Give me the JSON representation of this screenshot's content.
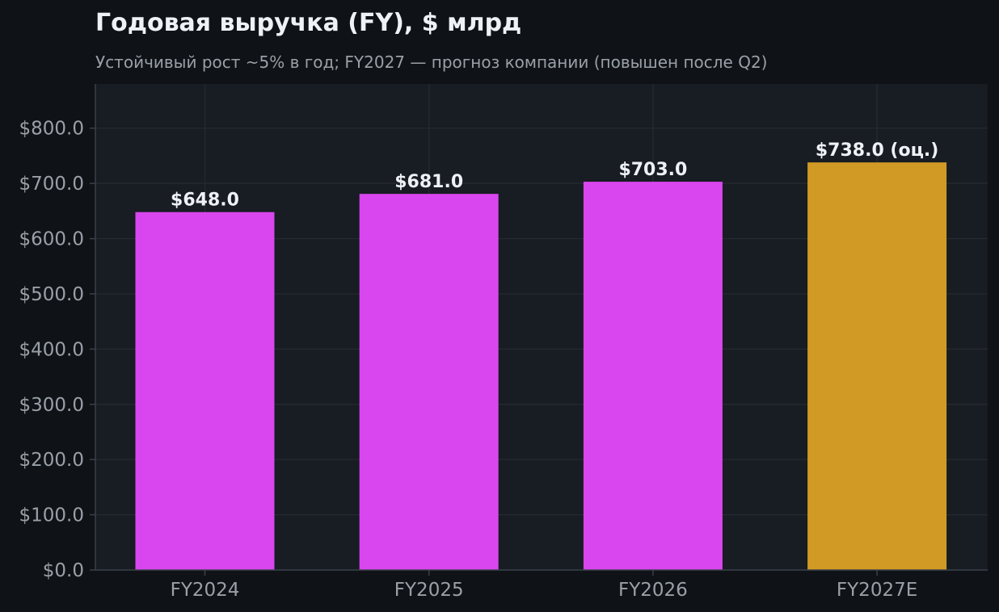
{
  "colors": {
    "page_bg": "#0f1317",
    "plot_bg": "#181c23",
    "grid": "#262b33",
    "axis": "#3a4049",
    "text_main": "#eef1f5",
    "text_muted": "#9aa0a8",
    "bar_actual": "#d946ef",
    "bar_estimate": "#d19a24"
  },
  "chart_data": {
    "type": "bar",
    "title": "Годовая выручка (FY), $ млрд",
    "subtitle": "Устойчивый рост ~5% в год; FY2027 — прогноз компании (повышен после Q2)",
    "xlabel": "",
    "ylabel": "",
    "categories": [
      "FY2024",
      "FY2025",
      "FY2026",
      "FY2027E"
    ],
    "values": [
      648.0,
      681.0,
      703.0,
      738.0
    ],
    "value_labels": [
      "$648.0",
      "$681.0",
      "$703.0",
      "$738.0 (оц.)"
    ],
    "estimate": [
      false,
      false,
      false,
      true
    ],
    "ylim": [
      0,
      880
    ],
    "y_ticks": [
      0,
      100,
      200,
      300,
      400,
      500,
      600,
      700,
      800
    ],
    "y_tick_labels": [
      "$0.0",
      "$100.0",
      "$200.0",
      "$300.0",
      "$400.0",
      "$500.0",
      "$600.0",
      "$700.0",
      "$800.0"
    ],
    "grid": true,
    "legend": "none"
  }
}
